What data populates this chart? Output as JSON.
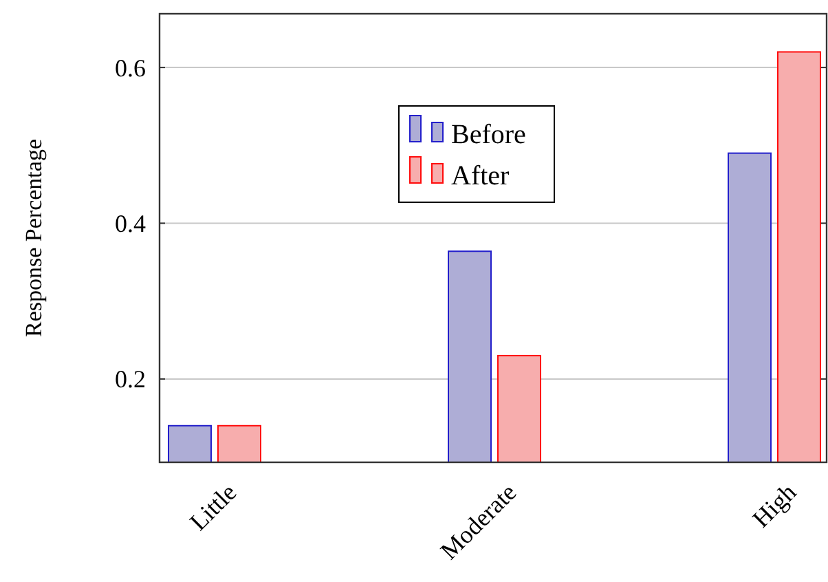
{
  "chart_data": {
    "type": "bar",
    "ylabel": "Response Percentage",
    "categories": [
      "Little",
      "Moderate",
      "High"
    ],
    "series": [
      {
        "name": "Before",
        "color": "#aeadd6",
        "values": [
          0.14,
          0.364,
          0.49
        ]
      },
      {
        "name": "After",
        "color": "#f7adad",
        "values": [
          0.14,
          0.23,
          0.62
        ]
      }
    ],
    "ylim": [
      0.093,
      0.669
    ],
    "yticks": [
      0.2,
      0.4,
      0.6
    ],
    "grid": "y",
    "legend": "top"
  }
}
